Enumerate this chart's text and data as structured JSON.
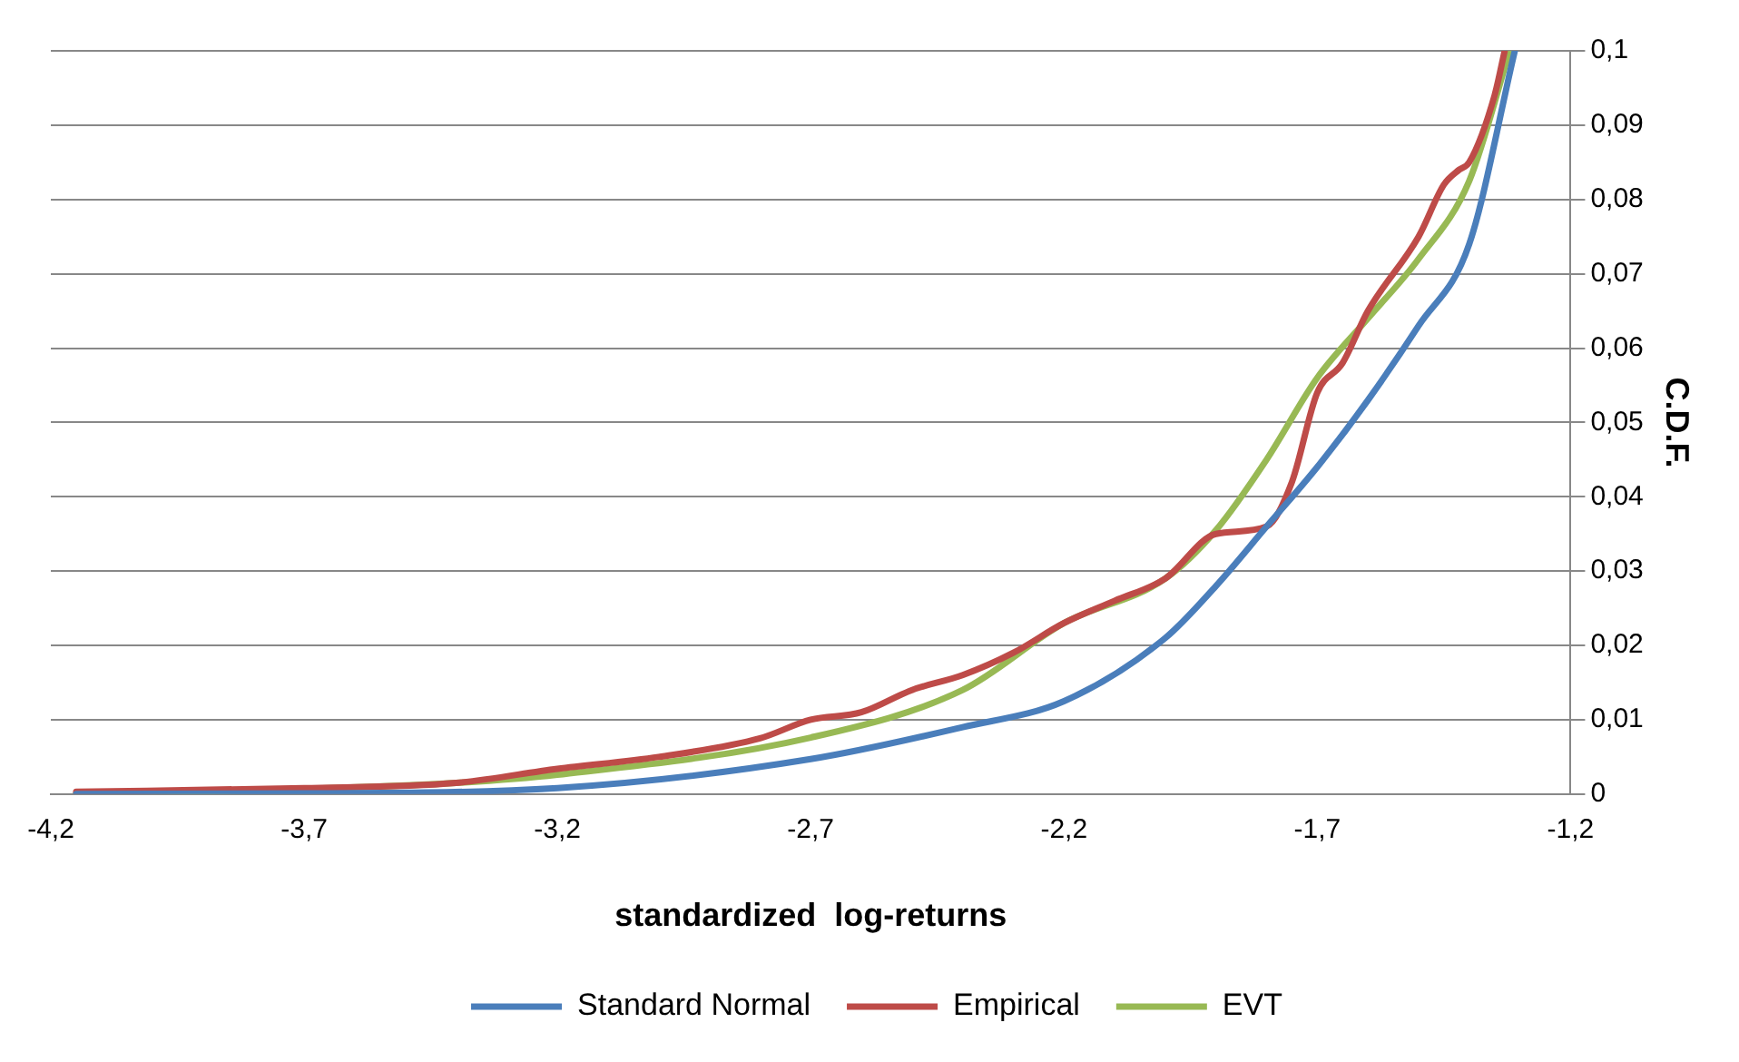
{
  "chart_data": {
    "type": "line",
    "xlabel": "standardized  log-returns",
    "ylabel": "C.D.F.",
    "xlim": [
      -4.2,
      -1.2
    ],
    "xticks": [
      {
        "value": -4.2,
        "label": "-4,2"
      },
      {
        "value": -3.7,
        "label": "-3,7"
      },
      {
        "value": -3.2,
        "label": "-3,2"
      },
      {
        "value": -2.7,
        "label": "-2,7"
      },
      {
        "value": -2.2,
        "label": "-2,2"
      },
      {
        "value": -1.7,
        "label": "-1,7"
      },
      {
        "value": -1.2,
        "label": "-1,2"
      }
    ],
    "ylim": [
      0,
      0.1
    ],
    "yticks": [
      0,
      {
        "value": 0.01,
        "label": "0,01"
      },
      {
        "value": 0.02,
        "label": "0,02"
      },
      {
        "value": 0.03,
        "label": "0,03"
      },
      {
        "value": 0.04,
        "label": "0,04"
      },
      {
        "value": 0.05,
        "label": "0,05"
      },
      {
        "value": 0.06,
        "label": "0,06"
      },
      {
        "value": 0.07,
        "label": "0,07"
      },
      {
        "value": 0.08,
        "label": "0,08"
      },
      {
        "value": 0.09,
        "label": "0,09"
      },
      {
        "value": 0.1,
        "label": "0,1"
      }
    ],
    "grid": "y",
    "legend": "bottom",
    "marker": "none",
    "line_style": "solid",
    "series": [
      {
        "name": "Standard Normal",
        "color": "#4a7ebb",
        "x": [
          -4.15,
          -3.7,
          -3.2,
          -2.7,
          -2.4,
          -2.2,
          -2.0,
          -1.9,
          -1.8,
          -1.7,
          -1.6,
          -1.5,
          -1.4,
          -1.31
        ],
        "values": [
          0,
          0.0001,
          0.0008,
          0.0047,
          0.009,
          0.0125,
          0.021,
          0.028,
          0.036,
          0.044,
          0.053,
          0.063,
          0.074,
          0.1
        ]
      },
      {
        "name": "Empirical",
        "color": "#be4b48",
        "x": [
          -4.15,
          -3.7,
          -3.4,
          -3.2,
          -3.0,
          -2.8,
          -2.7,
          -2.6,
          -2.5,
          -2.4,
          -2.3,
          -2.2,
          -2.1,
          -2.0,
          -1.9,
          -1.8,
          -1.75,
          -1.7,
          -1.65,
          -1.6,
          -1.5,
          -1.45,
          -1.42,
          -1.4,
          -1.35,
          -1.33
        ],
        "values": [
          0.0003,
          0.0008,
          0.0015,
          0.0034,
          0.005,
          0.0075,
          0.01,
          0.011,
          0.014,
          0.016,
          0.019,
          0.023,
          0.026,
          0.029,
          0.035,
          0.036,
          0.042,
          0.054,
          0.058,
          0.065,
          0.075,
          0.082,
          0.084,
          0.085,
          0.094,
          0.1
        ]
      },
      {
        "name": "EVT",
        "color": "#98b954",
        "x": [
          -4.15,
          -3.7,
          -3.4,
          -3.2,
          -2.7,
          -2.4,
          -2.2,
          -2.0,
          -1.9,
          -1.8,
          -1.7,
          -1.6,
          -1.5,
          -1.4,
          -1.32
        ],
        "values": [
          0,
          0.0007,
          0.0015,
          0.0026,
          0.0076,
          0.014,
          0.023,
          0.029,
          0.0355,
          0.045,
          0.056,
          0.064,
          0.072,
          0.0825,
          0.1
        ]
      }
    ]
  }
}
